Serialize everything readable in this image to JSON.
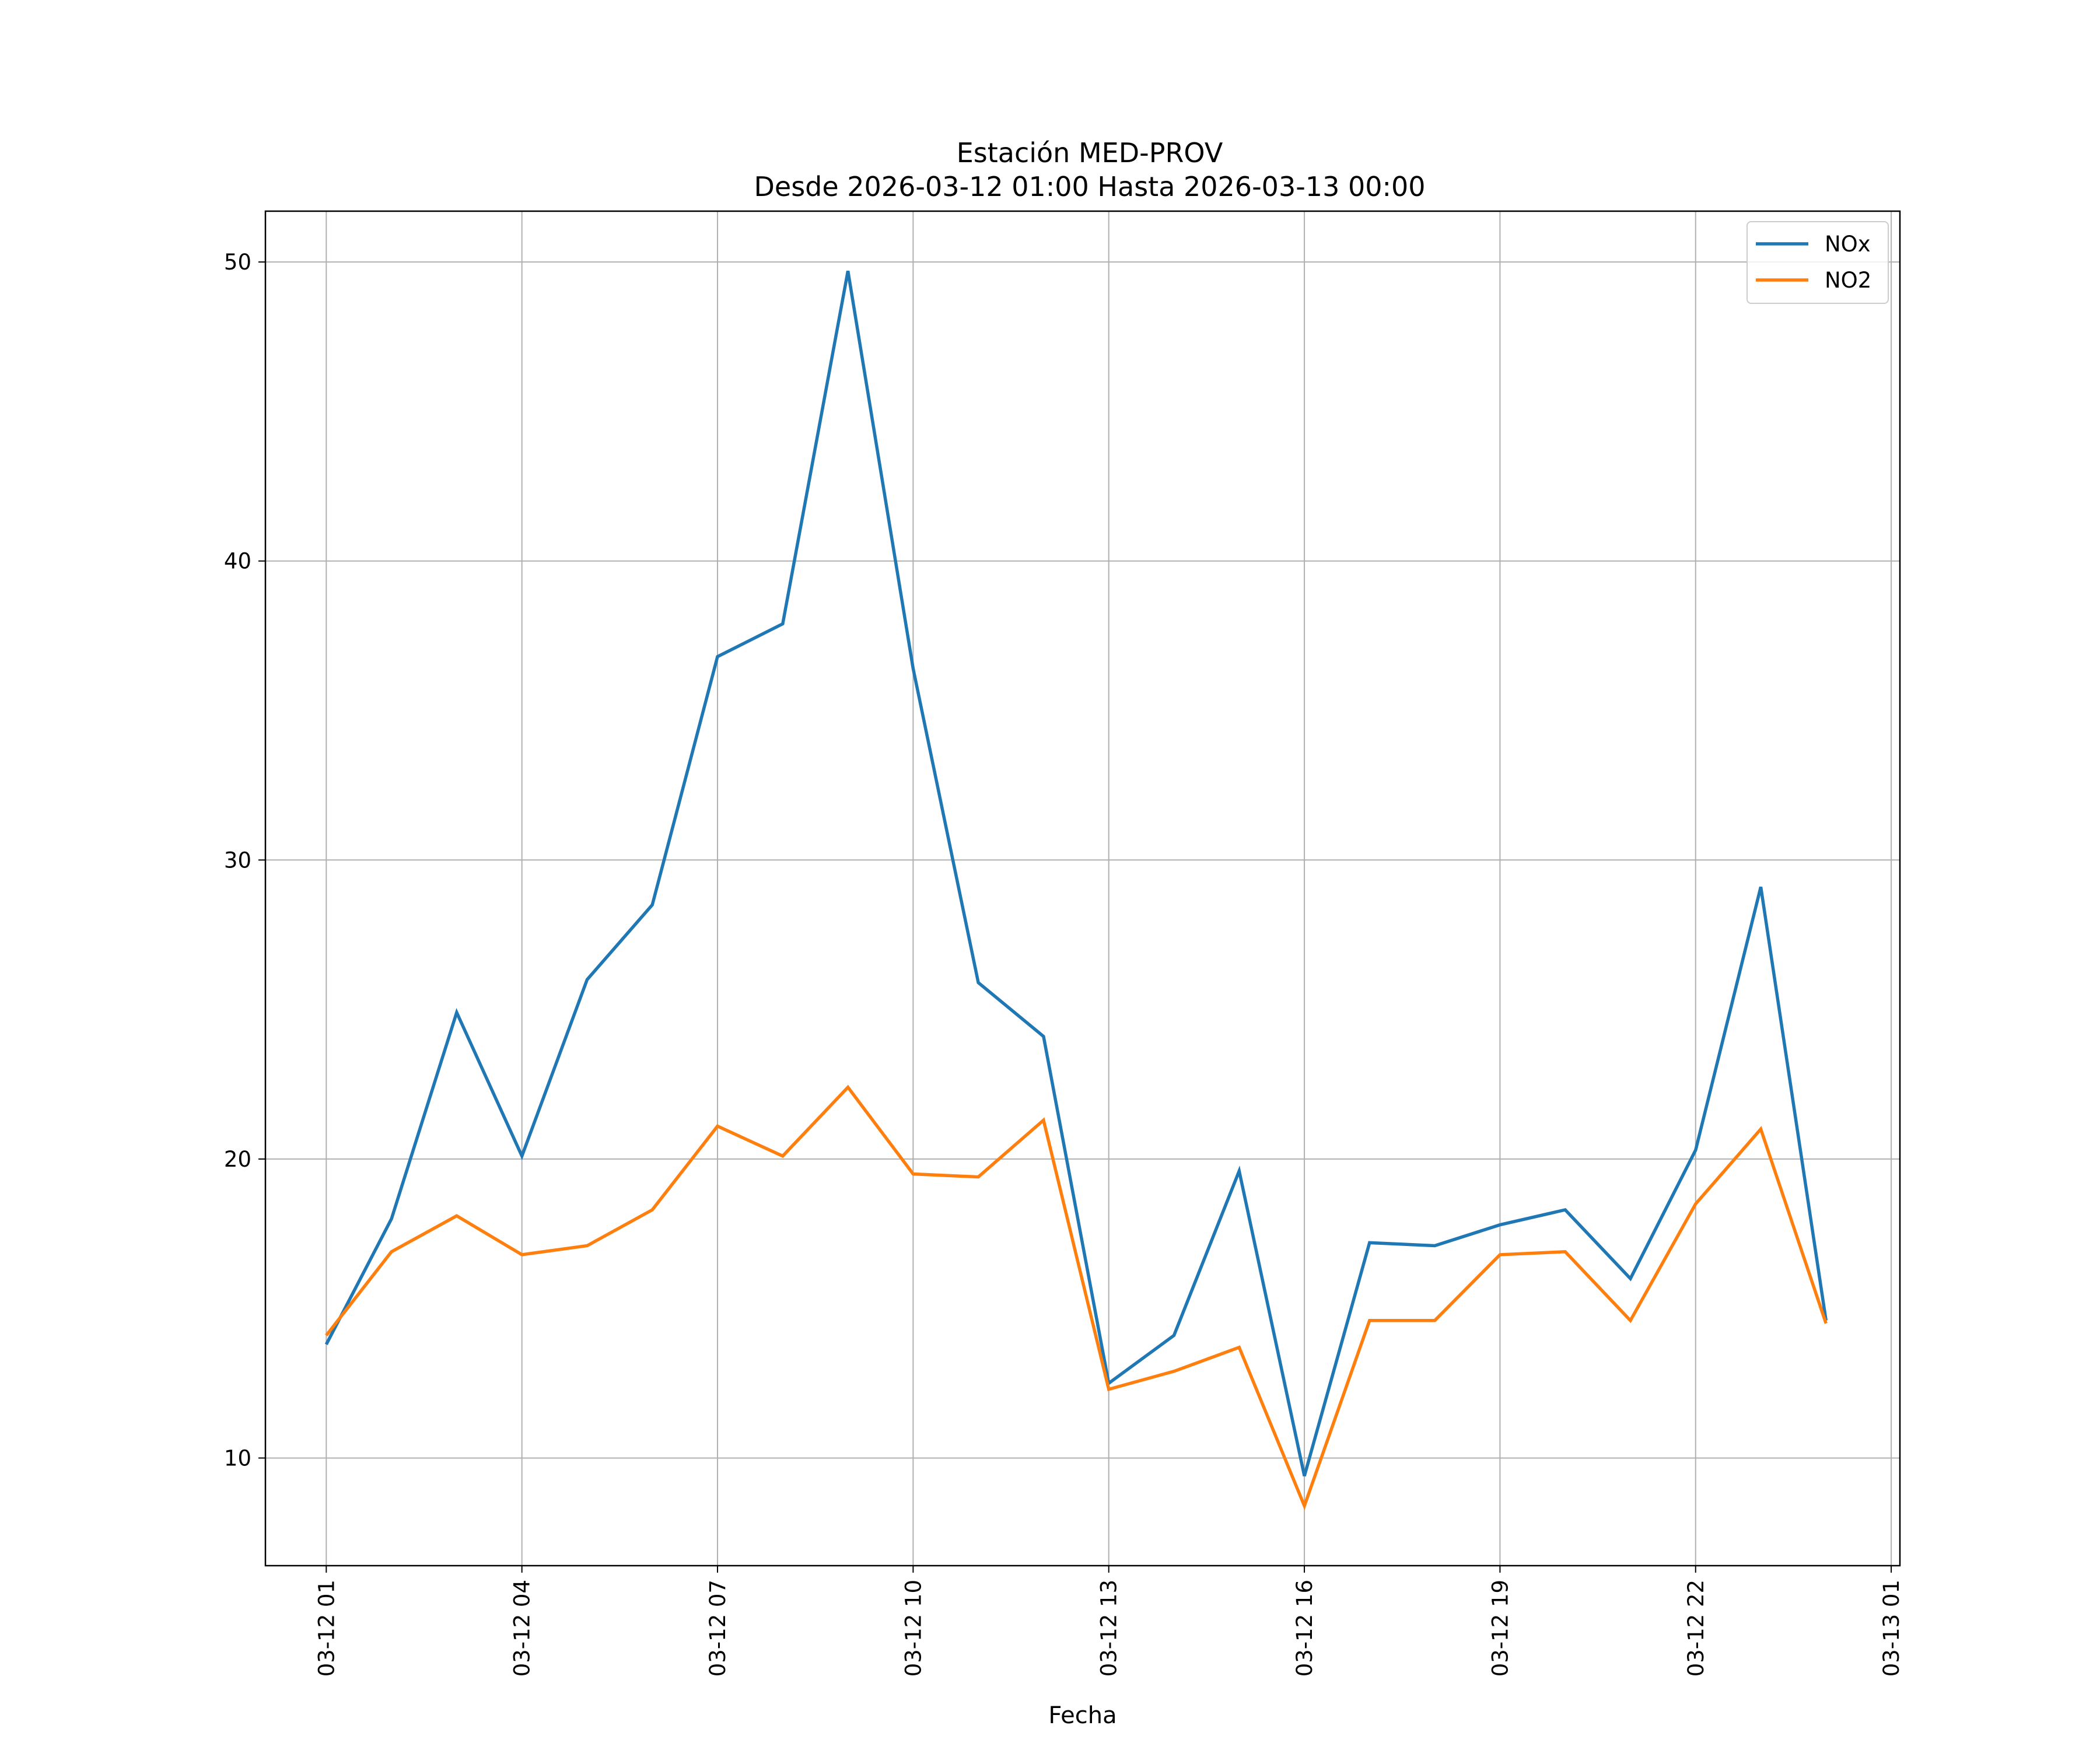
{
  "chart_data": {
    "type": "line",
    "title": "Estación MED-PROV",
    "subtitle": "Desde 2026-03-12 01:00 Hasta 2026-03-13 00:00",
    "xlabel": "Fecha",
    "ylabel": "",
    "x": [
      "2026-03-12 01:00",
      "2026-03-12 02:00",
      "2026-03-12 03:00",
      "2026-03-12 04:00",
      "2026-03-12 05:00",
      "2026-03-12 06:00",
      "2026-03-12 07:00",
      "2026-03-12 08:00",
      "2026-03-12 09:00",
      "2026-03-12 10:00",
      "2026-03-12 11:00",
      "2026-03-12 12:00",
      "2026-03-12 13:00",
      "2026-03-12 14:00",
      "2026-03-12 15:00",
      "2026-03-12 16:00",
      "2026-03-12 17:00",
      "2026-03-12 18:00",
      "2026-03-12 19:00",
      "2026-03-12 20:00",
      "2026-03-12 21:00",
      "2026-03-12 22:00",
      "2026-03-12 23:00",
      "2026-03-13 00:00"
    ],
    "xlim": [
      "2026-03-12 00:04",
      "2026-03-13 01:08"
    ],
    "ylim": [
      6.4,
      51.7
    ],
    "x_ticks": [
      "2026-03-12 01:00",
      "2026-03-12 04:00",
      "2026-03-12 07:00",
      "2026-03-12 10:00",
      "2026-03-12 13:00",
      "2026-03-12 16:00",
      "2026-03-12 19:00",
      "2026-03-12 22:00",
      "2026-03-13 01:00"
    ],
    "x_tick_labels": [
      "03-12 01",
      "03-12 04",
      "03-12 07",
      "03-12 10",
      "03-12 13",
      "03-12 16",
      "03-12 19",
      "03-12 22",
      "03-13 01"
    ],
    "y_ticks": [
      10,
      20,
      30,
      40,
      50
    ],
    "y_tick_labels": [
      "10",
      "20",
      "30",
      "40",
      "50"
    ],
    "grid": true,
    "legend_position": "top-right",
    "series": [
      {
        "name": "NOx",
        "color": "#1f77b4",
        "values": [
          13.8,
          18.0,
          24.9,
          20.1,
          26.0,
          28.5,
          36.8,
          37.9,
          49.7,
          36.4,
          25.9,
          24.1,
          12.5,
          14.1,
          19.6,
          9.4,
          17.2,
          17.1,
          17.8,
          18.3,
          16.0,
          20.3,
          29.1,
          14.6
        ]
      },
      {
        "name": "NO2",
        "color": "#ff7f0e",
        "values": [
          14.1,
          16.9,
          18.1,
          16.8,
          17.1,
          18.3,
          21.1,
          20.1,
          22.4,
          19.5,
          19.4,
          21.3,
          12.3,
          12.9,
          13.7,
          8.4,
          14.6,
          14.6,
          16.8,
          16.9,
          14.6,
          18.5,
          21.0,
          14.5
        ]
      }
    ]
  }
}
